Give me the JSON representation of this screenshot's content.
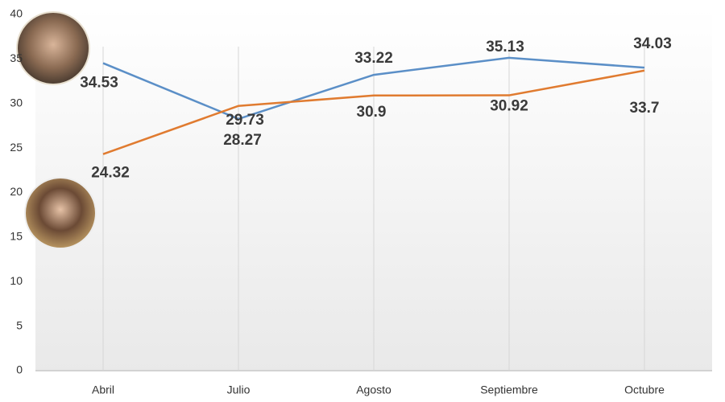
{
  "chart_data": {
    "type": "line",
    "categories": [
      "Abril",
      "Julio",
      "Agosto",
      "Septiembre",
      "Octubre"
    ],
    "series": [
      {
        "color": "#5b8fc7",
        "values": [
          34.53,
          28.27,
          33.22,
          35.13,
          34.03
        ]
      },
      {
        "color": "#e07b30",
        "values": [
          24.32,
          29.73,
          30.9,
          30.92,
          33.7
        ]
      }
    ],
    "ylim": [
      0,
      40
    ],
    "yticks": [
      0,
      5,
      10,
      15,
      20,
      25,
      30,
      35,
      40
    ],
    "grid": true
  }
}
